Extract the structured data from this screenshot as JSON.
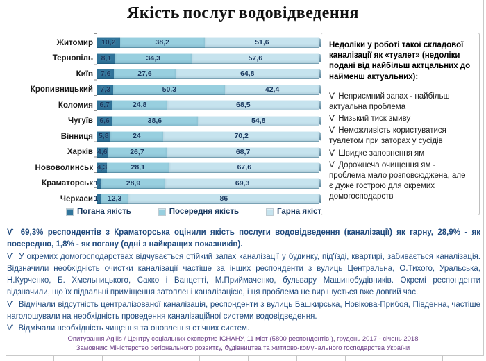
{
  "title": "Якість послуг водовідведення",
  "chart_data": {
    "type": "bar",
    "stacked": true,
    "orientation": "horizontal",
    "categories": [
      "Житомир",
      "Тернопіль",
      "Київ",
      "Кропивницький",
      "Коломия",
      "Чугуїв",
      "Вінниця",
      "Харків",
      "Нововолинськ",
      "Краматорськ",
      "Черкаси"
    ],
    "series": [
      {
        "name": "Погана якість",
        "color": "#31759b",
        "values": [
          10.2,
          8.1,
          7.6,
          7.3,
          6.7,
          6.6,
          5.8,
          4.6,
          4.3,
          1.8,
          1.7
        ]
      },
      {
        "name": "Посередня якість",
        "color": "#98cfdf",
        "values": [
          38.2,
          34.3,
          27.6,
          50.3,
          24.8,
          38.6,
          24,
          26.7,
          28.1,
          28.9,
          12.3
        ]
      },
      {
        "name": "Гарна якість",
        "color": "#c6e3ee",
        "values": [
          51.6,
          57.6,
          64.8,
          42.4,
          68.5,
          54.8,
          70.2,
          68.7,
          67.6,
          69.3,
          86
        ]
      }
    ],
    "xlim": [
      0,
      100
    ],
    "value_label_decimal_separator": ",",
    "legend_position": "bottom",
    "grid": false
  },
  "side_panel": {
    "bullet_char": "Ѵ",
    "heading": "Недоліки у роботі такої складової каналізації як «туалет» (недоліки подані від найбільш актцальних до найменш актуальних):",
    "items": [
      "Неприємний запах - найбільш актуальна проблема",
      "Низький тиск змиву",
      "Неможливість користуватися туалетом при заторах у сусідів",
      "Швидке заповнення ям",
      "Дорожнеча очищення ям - проблема мало розповсюджена, але є дуже гострою для окремих домогосподарств"
    ]
  },
  "bottom": {
    "bullet_char": "Ѵ",
    "bullets": [
      {
        "bold": true,
        "text": "69,3% респондентів з Краматорська оцінили якість послуги водовідведення (каналізації) як гарну, 28,9% - як посередню, 1,8% - як погану (одні з найкращих показників)."
      },
      {
        "bold": false,
        "text": "У окремих домогосподарствах відчувається стійкий запах каналізації у будинку, під'їзді, квартирі, забивається каналізація. Відзначили необхідність очистки каналізації частіше за інших респонденти з вулиць Центральна, О.Тихого, Уральська, Н.Курченко, Б. Хмельницького, Сакко і Ванцетті, М.Приймаченко, бульвару Машинобудівників. Окремі респонденти відзначили, що їх підвальні приміщення затоплені каналізацією, і ця проблема не вирішується вже довгий час."
      },
      {
        "bold": false,
        "text": "Відмічали відсутність централізованої каналізація, респонденти з вулиць Башкирська, Новікова-Прибоя, Південна, частіше наголошували на необхідність проведення каналізаційної системи водовідведення."
      },
      {
        "bold": false,
        "text": "Відмічали необхідність чищення та оновлення стічних систем."
      }
    ]
  },
  "footer": {
    "line1": "Опитування Agilis / Центру соціальних експертиз ІСНАНУ, 11 міст (5800 респондентів ), грудень 2017 - січень 2018",
    "line2": "Замовник: Міністерство регіонального розвитку, будівництва та житлово-комунального  господарства України"
  },
  "colors": {
    "bad_quality": "#31759b",
    "medium_quality": "#98cfdf",
    "good_quality": "#c6e3ee",
    "value_label": "#17375e",
    "body_text": "#1f497d",
    "footer_text": "#6a3e85",
    "panel_border": "#bfbfbf"
  }
}
